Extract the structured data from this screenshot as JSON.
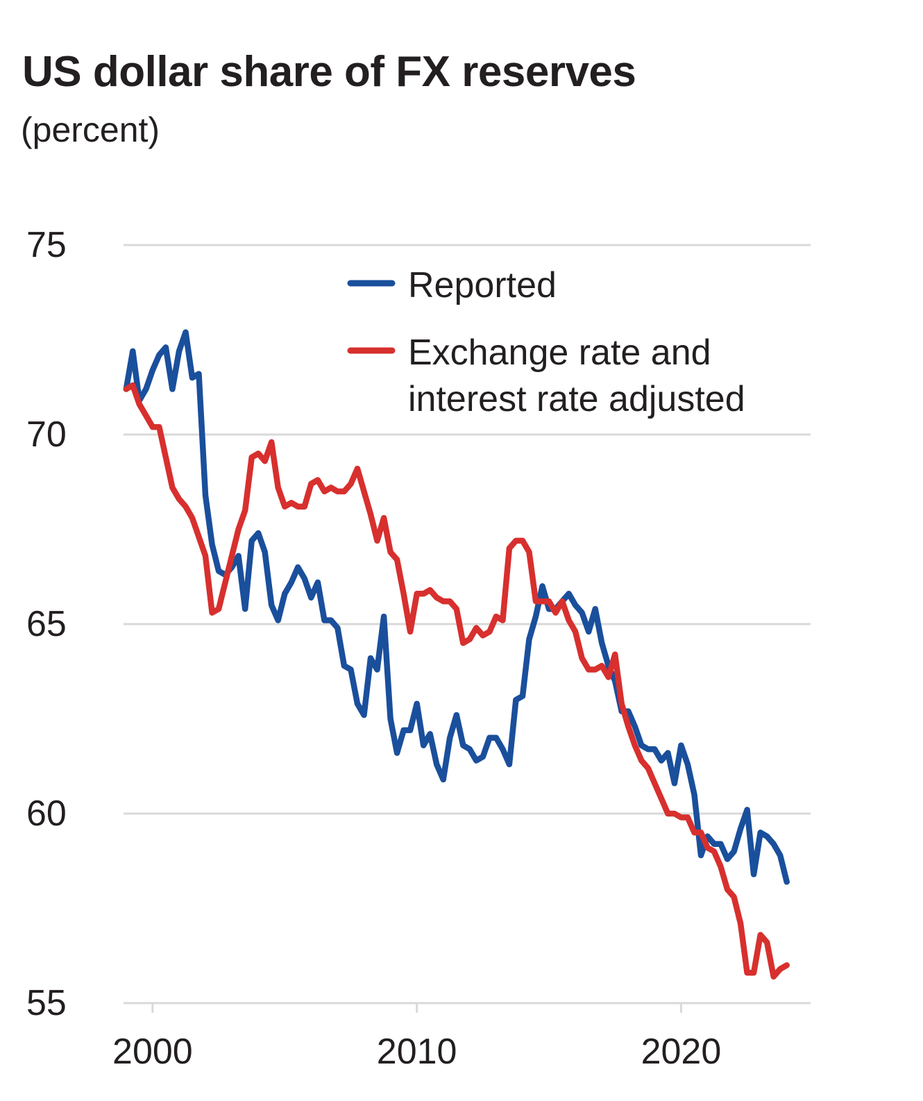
{
  "colors": {
    "reported": "#1a4f9c",
    "adjusted": "#d7302e",
    "grid": "#d9d9d9",
    "text": "#231f20"
  },
  "chart_data": {
    "type": "line",
    "title": "US dollar share of FX reserves",
    "subtitle": "(percent)",
    "xlabel": "",
    "ylabel": "",
    "xlim": [
      1998.9,
      2024.9
    ],
    "ylim": [
      55,
      75
    ],
    "x_ticks": [
      2000,
      2010,
      2020
    ],
    "x_tick_labels": [
      "2000",
      "2010",
      "2020"
    ],
    "y_ticks": [
      75,
      70,
      65,
      60,
      55
    ],
    "y_tick_labels": [
      "75",
      "70",
      "65",
      "60",
      "55"
    ],
    "grid": "horizontal",
    "legend_position": "top-right",
    "series": [
      {
        "name": "Reported",
        "color": "#1a4f9c",
        "x": [
          1999.0,
          1999.25,
          1999.5,
          1999.75,
          2000.0,
          2000.25,
          2000.5,
          2000.75,
          2001.0,
          2001.25,
          2001.5,
          2001.75,
          2002.0,
          2002.25,
          2002.5,
          2002.75,
          2003.0,
          2003.25,
          2003.5,
          2003.75,
          2004.0,
          2004.25,
          2004.5,
          2004.75,
          2005.0,
          2005.25,
          2005.5,
          2005.75,
          2006.0,
          2006.25,
          2006.5,
          2006.75,
          2007.0,
          2007.25,
          2007.5,
          2007.75,
          2008.0,
          2008.25,
          2008.5,
          2008.75,
          2009.0,
          2009.25,
          2009.5,
          2009.75,
          2010.0,
          2010.25,
          2010.5,
          2010.75,
          2011.0,
          2011.25,
          2011.5,
          2011.75,
          2012.0,
          2012.25,
          2012.5,
          2012.75,
          2013.0,
          2013.25,
          2013.5,
          2013.75,
          2014.0,
          2014.25,
          2014.5,
          2014.75,
          2015.0,
          2015.25,
          2015.5,
          2015.75,
          2016.0,
          2016.25,
          2016.5,
          2016.75,
          2017.0,
          2017.25,
          2017.5,
          2017.75,
          2018.0,
          2018.25,
          2018.5,
          2018.75,
          2019.0,
          2019.25,
          2019.5,
          2019.75,
          2020.0,
          2020.25,
          2020.5,
          2020.75,
          2021.0,
          2021.25,
          2021.5,
          2021.75,
          2022.0,
          2022.25,
          2022.5,
          2022.75,
          2023.0,
          2023.25,
          2023.5,
          2023.75,
          2024.0
        ],
        "values": [
          71.2,
          72.2,
          70.9,
          71.2,
          71.7,
          72.1,
          72.3,
          71.2,
          72.2,
          72.7,
          71.5,
          71.6,
          68.4,
          67.1,
          66.4,
          66.3,
          66.5,
          66.8,
          65.4,
          67.2,
          67.4,
          66.9,
          65.5,
          65.1,
          65.8,
          66.1,
          66.5,
          66.2,
          65.7,
          66.1,
          65.1,
          65.1,
          64.9,
          63.9,
          63.8,
          62.9,
          62.6,
          64.1,
          63.8,
          65.2,
          62.5,
          61.6,
          62.2,
          62.2,
          62.9,
          61.8,
          62.1,
          61.3,
          60.9,
          62.0,
          62.6,
          61.8,
          61.7,
          61.4,
          61.5,
          62.0,
          62.0,
          61.7,
          61.3,
          63.0,
          63.1,
          64.6,
          65.2,
          66.0,
          65.4,
          65.4,
          65.6,
          65.8,
          65.5,
          65.3,
          64.8,
          65.4,
          64.5,
          63.9,
          63.5,
          62.7,
          62.7,
          62.3,
          61.8,
          61.7,
          61.7,
          61.4,
          61.6,
          60.8,
          61.8,
          61.3,
          60.5,
          58.9,
          59.4,
          59.2,
          59.2,
          58.8,
          59.0,
          59.6,
          60.1,
          58.4,
          59.5,
          59.4,
          59.2,
          58.9,
          58.2
        ]
      },
      {
        "name": "Exchange rate and interest rate adjusted",
        "color": "#d7302e",
        "x": [
          1999.0,
          1999.25,
          1999.5,
          1999.75,
          2000.0,
          2000.25,
          2000.5,
          2000.75,
          2001.0,
          2001.25,
          2001.5,
          2001.75,
          2002.0,
          2002.25,
          2002.5,
          2002.75,
          2003.0,
          2003.25,
          2003.5,
          2003.75,
          2004.0,
          2004.25,
          2004.5,
          2004.75,
          2005.0,
          2005.25,
          2005.5,
          2005.75,
          2006.0,
          2006.25,
          2006.5,
          2006.75,
          2007.0,
          2007.25,
          2007.5,
          2007.75,
          2008.0,
          2008.25,
          2008.5,
          2008.75,
          2009.0,
          2009.25,
          2009.5,
          2009.75,
          2010.0,
          2010.25,
          2010.5,
          2010.75,
          2011.0,
          2011.25,
          2011.5,
          2011.75,
          2012.0,
          2012.25,
          2012.5,
          2012.75,
          2013.0,
          2013.25,
          2013.5,
          2013.75,
          2014.0,
          2014.25,
          2014.5,
          2014.75,
          2015.0,
          2015.25,
          2015.5,
          2015.75,
          2016.0,
          2016.25,
          2016.5,
          2016.75,
          2017.0,
          2017.25,
          2017.5,
          2017.75,
          2018.0,
          2018.25,
          2018.5,
          2018.75,
          2019.0,
          2019.25,
          2019.5,
          2019.75,
          2020.0,
          2020.25,
          2020.5,
          2020.75,
          2021.0,
          2021.25,
          2021.5,
          2021.75,
          2022.0,
          2022.25,
          2022.5,
          2022.75,
          2023.0,
          2023.25,
          2023.5,
          2023.75,
          2024.0
        ],
        "values": [
          71.2,
          71.3,
          70.8,
          70.5,
          70.2,
          70.2,
          69.4,
          68.6,
          68.3,
          68.1,
          67.8,
          67.3,
          66.8,
          65.3,
          65.4,
          66.1,
          66.8,
          67.5,
          68.0,
          69.4,
          69.5,
          69.3,
          69.8,
          68.6,
          68.1,
          68.2,
          68.1,
          68.1,
          68.7,
          68.8,
          68.5,
          68.6,
          68.5,
          68.5,
          68.7,
          69.1,
          68.5,
          67.9,
          67.2,
          67.8,
          66.9,
          66.7,
          65.8,
          64.8,
          65.8,
          65.8,
          65.9,
          65.7,
          65.6,
          65.6,
          65.4,
          64.5,
          64.6,
          64.9,
          64.7,
          64.8,
          65.2,
          65.1,
          67.0,
          67.2,
          67.2,
          66.9,
          65.6,
          65.6,
          65.6,
          65.3,
          65.6,
          65.1,
          64.8,
          64.1,
          63.8,
          63.8,
          63.9,
          63.6,
          64.2,
          62.9,
          62.3,
          61.8,
          61.4,
          61.2,
          60.8,
          60.4,
          60.0,
          60.0,
          59.9,
          59.9,
          59.5,
          59.5,
          59.1,
          59.0,
          58.6,
          58.0,
          57.8,
          57.1,
          55.8,
          55.8,
          56.8,
          56.6,
          55.7,
          55.9,
          56.0
        ]
      }
    ]
  }
}
